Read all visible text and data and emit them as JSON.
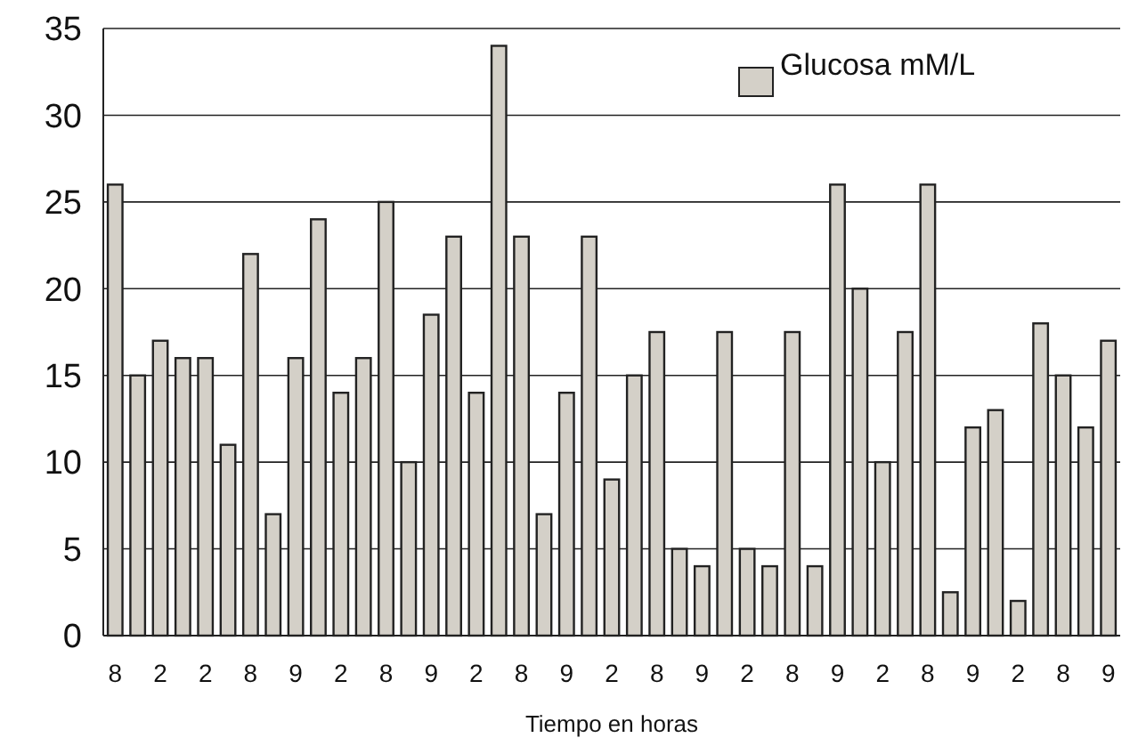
{
  "chart_data": {
    "type": "bar",
    "xlabel": "Tiempo en horas",
    "categories": [
      "8",
      null,
      "2",
      null,
      "2",
      null,
      "8",
      null,
      "9",
      null,
      "2",
      null,
      "8",
      null,
      "9",
      null,
      "2",
      null,
      "8",
      null,
      "9",
      null,
      "2",
      null,
      "8",
      null,
      "9",
      null,
      "2",
      null,
      "8",
      null,
      "9",
      null,
      "2",
      null,
      "8",
      null,
      "9",
      null,
      "2",
      null,
      "8",
      null,
      "9"
    ],
    "series": [
      {
        "name": "Glucosa mM/L",
        "color": "#d4d0c8",
        "values": [
          26,
          15,
          17,
          16,
          16,
          11,
          22,
          7,
          16,
          24,
          14,
          16,
          25,
          10,
          18.5,
          23,
          14,
          34,
          23,
          7,
          14,
          23,
          9,
          15,
          17.5,
          5,
          4,
          17.5,
          5,
          4,
          17.5,
          4,
          26,
          20,
          10,
          17.5,
          26,
          2.5,
          12,
          13,
          2,
          18,
          15,
          12,
          17
        ]
      }
    ],
    "ylim": [
      0,
      35
    ],
    "yticks": [
      0,
      5,
      10,
      15,
      20,
      25,
      30,
      35
    ],
    "grid": "y",
    "legend": "top right"
  }
}
